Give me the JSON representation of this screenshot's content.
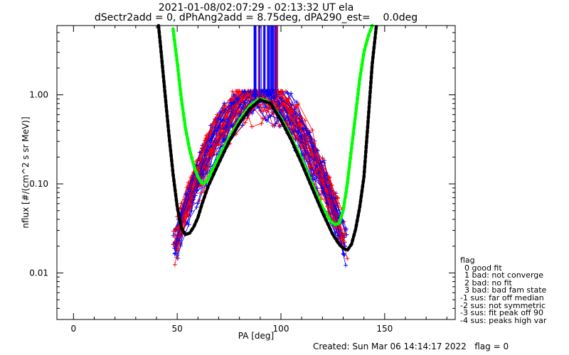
{
  "title_line1": "2021-01-08/02:07:29 - 02:13:32 UT ela",
  "title_line2": "dSectr2add = 0, dPhAng2add = 8.75deg, dPA290_est=    0.0deg",
  "legend": {
    "title": "flag",
    "items": [
      "0 good fit",
      "1 bad: not converge",
      "2 bad: no fit",
      "3 bad: bad fam state",
      "-1 sus: far off median",
      "-2 sus: not symmetric",
      "-3 sus: fit peak off 90",
      "-4 sus: peaks high var"
    ]
  },
  "footer": {
    "created": "Created: Sun Mar 06 14:14:17 2022",
    "flag": "flag = 0"
  },
  "colors": {
    "red": "#ff0000",
    "blue": "#0000ff",
    "green": "#00ff00",
    "black": "#000000"
  },
  "chart_data": {
    "type": "line",
    "xlabel": "PA [deg]",
    "ylabel": "nflux [#/(cm^2 s sr MeV)]",
    "xlim": [
      -8,
      184
    ],
    "ylim": [
      0.003,
      6.0
    ],
    "yscale": "log",
    "xticks": [
      0,
      50,
      100,
      150
    ],
    "xtick_labels": [
      "0",
      "50",
      "100",
      "150"
    ],
    "yticks": [
      0.01,
      0.1,
      1.0
    ],
    "ytick_labels": [
      "0.01",
      "0.10",
      "1.00"
    ],
    "series": [
      {
        "color": "#00ff00",
        "style": "thick-dashed",
        "x": [
          48,
          50,
          52,
          54,
          56,
          58,
          60,
          62,
          64,
          66,
          70,
          75,
          80,
          85,
          88,
          90,
          92,
          95,
          100,
          105,
          110,
          115,
          120,
          124,
          126,
          128,
          130,
          132,
          134,
          136,
          138,
          140,
          142,
          144
        ],
        "y": [
          5.5,
          2.3,
          0.9,
          0.42,
          0.24,
          0.16,
          0.12,
          0.1,
          0.105,
          0.13,
          0.2,
          0.33,
          0.52,
          0.75,
          0.85,
          0.9,
          0.88,
          0.8,
          0.55,
          0.33,
          0.19,
          0.1,
          0.055,
          0.038,
          0.035,
          0.036,
          0.05,
          0.1,
          0.25,
          0.6,
          1.5,
          3.0,
          4.5,
          6.0
        ]
      },
      {
        "color": "#000000",
        "style": "thick-dashed",
        "x": [
          41,
          42,
          44,
          46,
          48,
          50,
          52,
          54,
          56,
          58,
          60,
          62,
          65,
          70,
          75,
          80,
          85,
          90,
          95,
          100,
          105,
          110,
          115,
          120,
          125,
          128,
          130,
          132,
          134,
          136,
          138,
          140,
          142,
          144,
          146
        ],
        "y": [
          6.0,
          3.5,
          1.1,
          0.36,
          0.13,
          0.055,
          0.032,
          0.027,
          0.028,
          0.033,
          0.042,
          0.06,
          0.095,
          0.17,
          0.3,
          0.48,
          0.7,
          0.88,
          0.8,
          0.52,
          0.31,
          0.17,
          0.09,
          0.048,
          0.027,
          0.021,
          0.019,
          0.018,
          0.021,
          0.031,
          0.055,
          0.12,
          0.5,
          2.2,
          6.0
        ]
      }
    ]
  }
}
